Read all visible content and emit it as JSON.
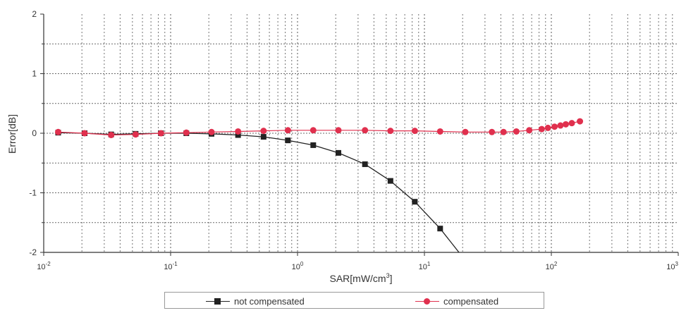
{
  "chart_data": {
    "type": "line",
    "title": "",
    "xlabel": "SAR[mW/cm3]",
    "ylabel": "Error[dB]",
    "xscale": "log",
    "xlim": [
      0.01,
      1000
    ],
    "ylim": [
      -2,
      2
    ],
    "x_tick_labels": [
      "10-2",
      "10-1",
      "100",
      "101",
      "102",
      "103"
    ],
    "y_tick_labels": [
      "2",
      "1",
      "0",
      "-1",
      "-2"
    ],
    "grid": true,
    "legend_position": "bottom",
    "colors": {
      "not_compensated": "#222222",
      "compensated": "#e0304e",
      "grid": "#444444"
    },
    "series": [
      {
        "name": "not compensated",
        "marker": "square",
        "x": [
          0.013,
          0.021,
          0.034,
          0.053,
          0.084,
          0.133,
          0.21,
          0.34,
          0.54,
          0.84,
          1.33,
          2.1,
          3.4,
          5.4,
          8.4,
          13.3
        ],
        "y": [
          0.01,
          0.0,
          -0.02,
          -0.01,
          0.0,
          0.0,
          -0.01,
          -0.03,
          -0.06,
          -0.12,
          -0.2,
          -0.33,
          -0.52,
          -0.8,
          -1.15,
          -1.6
        ]
      },
      {
        "name": "compensated",
        "marker": "circle",
        "x": [
          0.013,
          0.021,
          0.034,
          0.053,
          0.084,
          0.133,
          0.21,
          0.34,
          0.54,
          0.84,
          1.33,
          2.1,
          3.4,
          5.4,
          8.4,
          13.3,
          21,
          34,
          42,
          53,
          67,
          84,
          94,
          106,
          118,
          130,
          145,
          168
        ],
        "y": [
          0.02,
          0.0,
          -0.03,
          -0.02,
          0.0,
          0.01,
          0.02,
          0.03,
          0.04,
          0.05,
          0.05,
          0.05,
          0.05,
          0.04,
          0.04,
          0.03,
          0.02,
          0.02,
          0.02,
          0.03,
          0.05,
          0.07,
          0.09,
          0.11,
          0.13,
          0.15,
          0.17,
          0.2
        ]
      }
    ]
  }
}
